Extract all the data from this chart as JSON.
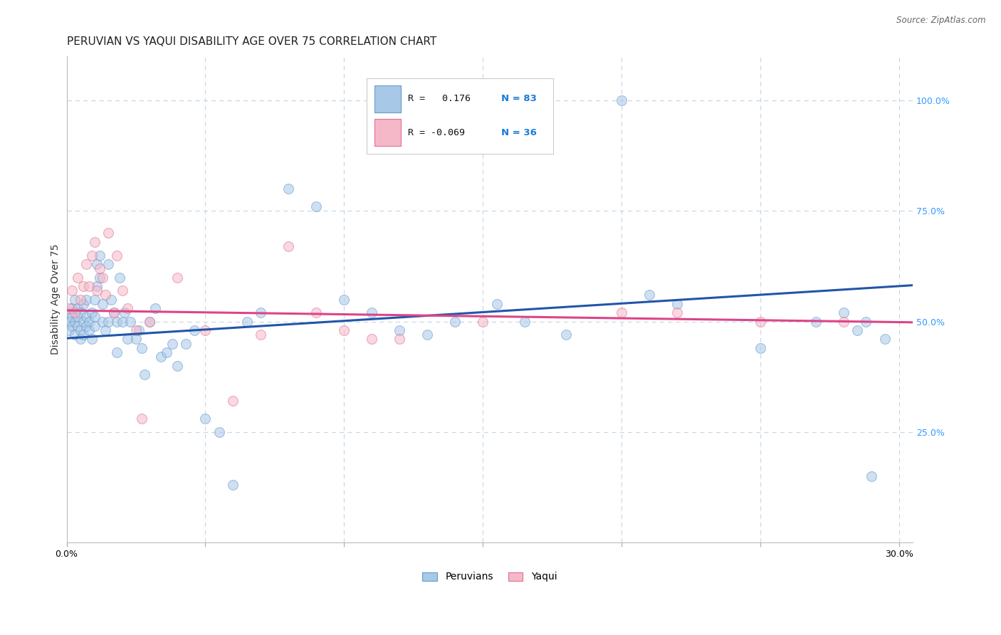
{
  "title": "PERUVIAN VS YAQUI DISABILITY AGE OVER 75 CORRELATION CHART",
  "source": "Source: ZipAtlas.com",
  "ylabel_label": "Disability Age Over 75",
  "x_tick_positions": [
    0.0,
    0.05,
    0.1,
    0.15,
    0.2,
    0.25,
    0.3
  ],
  "x_tick_labels": [
    "0.0%",
    "",
    "",
    "",
    "",
    "",
    "30.0%"
  ],
  "y_ticks_right": [
    0.25,
    0.5,
    0.75,
    1.0
  ],
  "y_tick_labels_right": [
    "25.0%",
    "50.0%",
    "75.0%",
    "100.0%"
  ],
  "xlim": [
    0.0,
    0.305
  ],
  "ylim": [
    0.0,
    1.1
  ],
  "peruvian_color": "#a8c8e8",
  "peruvian_edge": "#6699cc",
  "yaqui_color": "#f5b8c8",
  "yaqui_edge": "#e07090",
  "blue_line_color": "#2255aa",
  "pink_line_color": "#dd4488",
  "legend_r_peruvian": "R =   0.176",
  "legend_n_peruvian": "N = 83",
  "legend_r_yaqui": "R = -0.069",
  "legend_n_yaqui": "N = 36",
  "blue_line_y0": 0.462,
  "blue_line_y1": 0.582,
  "pink_line_y0": 0.525,
  "pink_line_y1": 0.498,
  "background_color": "#ffffff",
  "grid_color": "#c8d8e8",
  "title_fontsize": 11,
  "axis_label_fontsize": 10,
  "tick_fontsize": 9,
  "marker_size": 100,
  "marker_alpha": 0.55,
  "line_width": 2.2,
  "peruvians_x": [
    0.001,
    0.001,
    0.001,
    0.002,
    0.002,
    0.002,
    0.003,
    0.003,
    0.003,
    0.004,
    0.004,
    0.004,
    0.005,
    0.005,
    0.005,
    0.006,
    0.006,
    0.006,
    0.007,
    0.007,
    0.007,
    0.008,
    0.008,
    0.009,
    0.009,
    0.01,
    0.01,
    0.01,
    0.011,
    0.011,
    0.012,
    0.012,
    0.013,
    0.013,
    0.014,
    0.015,
    0.015,
    0.016,
    0.017,
    0.018,
    0.018,
    0.019,
    0.02,
    0.021,
    0.022,
    0.023,
    0.025,
    0.026,
    0.027,
    0.028,
    0.03,
    0.032,
    0.034,
    0.036,
    0.038,
    0.04,
    0.043,
    0.046,
    0.05,
    0.055,
    0.06,
    0.065,
    0.07,
    0.08,
    0.09,
    0.1,
    0.11,
    0.12,
    0.13,
    0.14,
    0.155,
    0.165,
    0.18,
    0.2,
    0.21,
    0.22,
    0.25,
    0.27,
    0.28,
    0.285,
    0.288,
    0.29,
    0.295
  ],
  "peruvians_y": [
    0.5,
    0.52,
    0.48,
    0.51,
    0.49,
    0.53,
    0.5,
    0.47,
    0.55,
    0.51,
    0.49,
    0.53,
    0.48,
    0.52,
    0.46,
    0.5,
    0.54,
    0.47,
    0.51,
    0.49,
    0.55,
    0.5,
    0.48,
    0.52,
    0.46,
    0.51,
    0.49,
    0.55,
    0.63,
    0.58,
    0.65,
    0.6,
    0.54,
    0.5,
    0.48,
    0.63,
    0.5,
    0.55,
    0.52,
    0.5,
    0.43,
    0.6,
    0.5,
    0.52,
    0.46,
    0.5,
    0.46,
    0.48,
    0.44,
    0.38,
    0.5,
    0.53,
    0.42,
    0.43,
    0.45,
    0.4,
    0.45,
    0.48,
    0.28,
    0.25,
    0.13,
    0.5,
    0.52,
    0.8,
    0.76,
    0.55,
    0.52,
    0.48,
    0.47,
    0.5,
    0.54,
    0.5,
    0.47,
    1.0,
    0.56,
    0.54,
    0.44,
    0.5,
    0.52,
    0.48,
    0.5,
    0.15,
    0.46
  ],
  "yaqui_x": [
    0.001,
    0.002,
    0.003,
    0.004,
    0.005,
    0.006,
    0.007,
    0.008,
    0.009,
    0.01,
    0.011,
    0.012,
    0.013,
    0.014,
    0.015,
    0.017,
    0.018,
    0.02,
    0.022,
    0.025,
    0.027,
    0.03,
    0.04,
    0.05,
    0.06,
    0.07,
    0.08,
    0.09,
    0.1,
    0.11,
    0.12,
    0.15,
    0.2,
    0.22,
    0.25,
    0.28
  ],
  "yaqui_y": [
    0.53,
    0.57,
    0.52,
    0.6,
    0.55,
    0.58,
    0.63,
    0.58,
    0.65,
    0.68,
    0.57,
    0.62,
    0.6,
    0.56,
    0.7,
    0.52,
    0.65,
    0.57,
    0.53,
    0.48,
    0.28,
    0.5,
    0.6,
    0.48,
    0.32,
    0.47,
    0.67,
    0.52,
    0.48,
    0.46,
    0.46,
    0.5,
    0.52,
    0.52,
    0.5,
    0.5
  ]
}
